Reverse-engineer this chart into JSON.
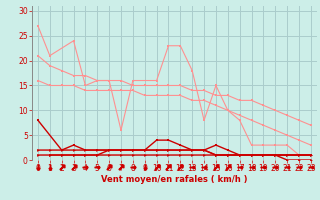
{
  "background_color": "#cceee8",
  "grid_color": "#aacccc",
  "xlabel": "Vent moyen/en rafales ( km/h )",
  "xlabel_color": "#cc0000",
  "xlabel_fontsize": 6,
  "tick_color": "#cc0000",
  "tick_fontsize": 5.5,
  "xlim": [
    -0.5,
    23.5
  ],
  "ylim": [
    0,
    31
  ],
  "yticks": [
    0,
    5,
    10,
    15,
    20,
    25,
    30
  ],
  "xticks": [
    0,
    1,
    2,
    3,
    4,
    5,
    6,
    7,
    8,
    9,
    10,
    11,
    12,
    13,
    14,
    15,
    16,
    17,
    18,
    19,
    20,
    21,
    22,
    23
  ],
  "line1_x": [
    0,
    1,
    3,
    4,
    5,
    6,
    7,
    8,
    10,
    11,
    12,
    13,
    14,
    15,
    16,
    17,
    18,
    19,
    20,
    21,
    22,
    23
  ],
  "line1_y": [
    27,
    21,
    24,
    15,
    16,
    16,
    6,
    16,
    16,
    23,
    23,
    18,
    8,
    15,
    10,
    8,
    3,
    3,
    3,
    3,
    1,
    1
  ],
  "line1_color": "#ff9090",
  "line2_x": [
    0,
    1,
    2,
    3,
    4,
    5,
    6,
    7,
    8,
    9,
    10,
    11,
    12,
    13,
    14,
    15,
    16,
    17,
    18,
    19,
    20,
    21,
    22,
    23
  ],
  "line2_y": [
    21,
    19,
    18,
    17,
    17,
    16,
    16,
    16,
    15,
    15,
    15,
    15,
    15,
    14,
    14,
    13,
    13,
    12,
    12,
    11,
    10,
    9,
    8,
    7
  ],
  "line2_color": "#ff9090",
  "line3_x": [
    0,
    1,
    2,
    3,
    4,
    5,
    6,
    7,
    8,
    9,
    10,
    11,
    12,
    13,
    14,
    15,
    16,
    17,
    18,
    19,
    20,
    21,
    22,
    23
  ],
  "line3_y": [
    16,
    15,
    15,
    15,
    14,
    14,
    14,
    14,
    14,
    13,
    13,
    13,
    13,
    12,
    12,
    11,
    10,
    9,
    8,
    7,
    6,
    5,
    4,
    3
  ],
  "line3_color": "#ff9090",
  "line4_x": [
    0,
    2,
    3,
    4,
    5,
    6,
    7,
    8,
    9,
    10,
    11,
    12,
    13,
    14,
    15,
    16,
    17,
    18,
    19,
    20,
    21,
    22,
    23
  ],
  "line4_y": [
    8,
    2,
    3,
    2,
    2,
    2,
    2,
    2,
    2,
    4,
    4,
    3,
    2,
    2,
    3,
    2,
    1,
    1,
    1,
    1,
    1,
    1,
    1
  ],
  "line4_color": "#cc0000",
  "line5_x": [
    0,
    1,
    2,
    3,
    4,
    5,
    6,
    7,
    8,
    9,
    10,
    11,
    12,
    13,
    14,
    15,
    16,
    17,
    18,
    19,
    20,
    21,
    22,
    23
  ],
  "line5_y": [
    2,
    2,
    2,
    2,
    2,
    2,
    2,
    2,
    2,
    2,
    2,
    2,
    2,
    2,
    2,
    1,
    1,
    1,
    1,
    1,
    1,
    1,
    1,
    1
  ],
  "line5_color": "#cc0000",
  "line6_x": [
    0,
    1,
    2,
    3,
    4,
    5,
    6,
    7,
    8,
    9,
    10,
    11,
    12,
    13,
    14,
    15,
    16,
    17,
    18,
    19,
    20,
    21,
    22,
    23
  ],
  "line6_y": [
    1,
    1,
    1,
    1,
    1,
    1,
    1,
    1,
    1,
    1,
    1,
    1,
    1,
    1,
    1,
    1,
    1,
    1,
    1,
    1,
    1,
    0,
    0,
    0
  ],
  "line6_color": "#cc0000",
  "line7_x": [
    1,
    2,
    3,
    4,
    5,
    6,
    7,
    8,
    9,
    10,
    11,
    12,
    13,
    14,
    15,
    16,
    17,
    18,
    19,
    20,
    21,
    22,
    23
  ],
  "line7_y": [
    1,
    1,
    1,
    1,
    1,
    2,
    2,
    2,
    2,
    2,
    2,
    2,
    2,
    2,
    1,
    1,
    1,
    1,
    1,
    1,
    1,
    1,
    1
  ],
  "line7_color": "#cc0000"
}
